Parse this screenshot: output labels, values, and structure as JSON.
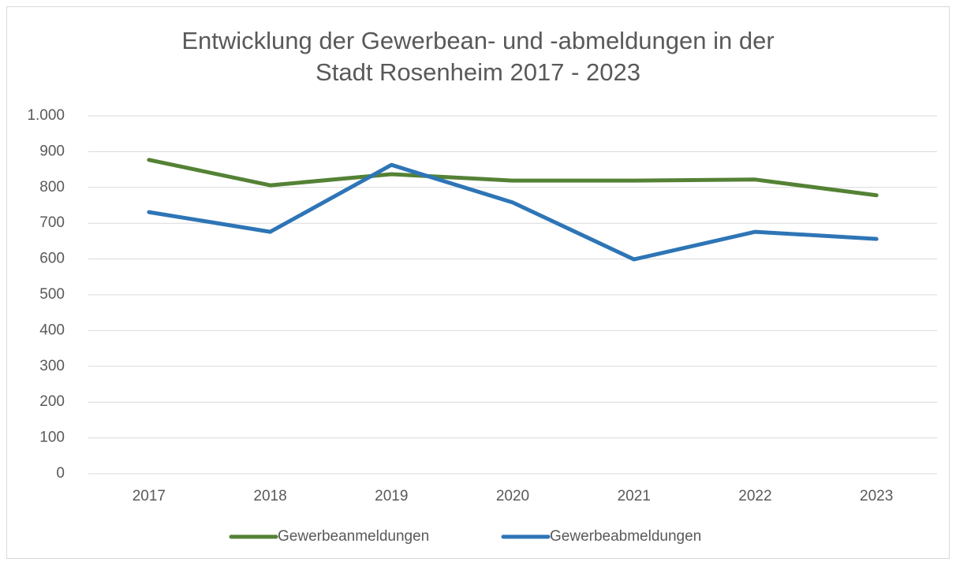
{
  "chart_data": {
    "type": "line",
    "title": "Entwicklung der Gewerbean- und -abmeldungen in der Stadt Rosenheim 2017 - 2023",
    "categories": [
      "2017",
      "2018",
      "2019",
      "2020",
      "2021",
      "2022",
      "2023"
    ],
    "series": [
      {
        "name": "Gewerbeanmeldungen",
        "color": "#548235",
        "values": [
          877,
          806,
          837,
          819,
          819,
          822,
          778
        ]
      },
      {
        "name": "Gewerbeabmeldungen",
        "color": "#2e75b6",
        "values": [
          731,
          676,
          863,
          758,
          599,
          676,
          656
        ]
      }
    ],
    "ylim": [
      0,
      1000
    ],
    "yticks": [
      0,
      100,
      200,
      300,
      400,
      500,
      600,
      700,
      800,
      900,
      {
        "value": 1000,
        "label": "1.000"
      }
    ],
    "grid": true,
    "legend": "bottom"
  }
}
